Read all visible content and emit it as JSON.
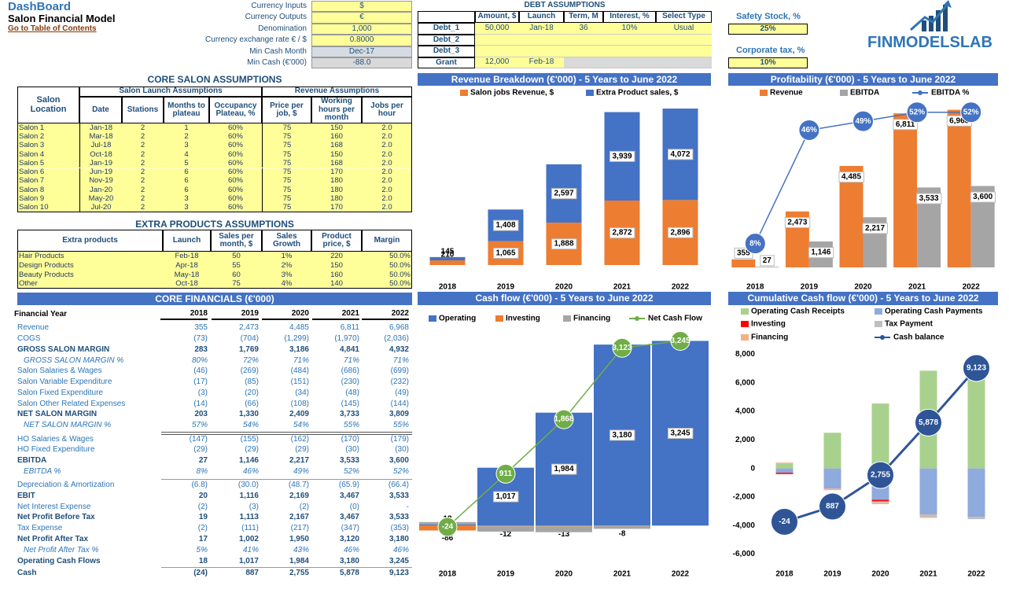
{
  "header": {
    "title": "DashBoard",
    "subtitle": "Salon Financial Model",
    "link": "Go to Table of Contents"
  },
  "inputs": [
    {
      "label": "Currency Inputs",
      "value": "$"
    },
    {
      "label": "Currency Outputs",
      "value": "€"
    },
    {
      "label": "Denomination",
      "value": "1,000"
    },
    {
      "label": "Currency exchange rate € / $",
      "value": "0.8000"
    },
    {
      "label": "Min Cash Month",
      "value": "Dec-17"
    },
    {
      "label": "Min Cash (€'000)",
      "value": "-88.0"
    }
  ],
  "debt": {
    "title": "DEBT ASSUMPTIONS",
    "columns": [
      "Amount, $",
      "Launch",
      "Term, M",
      "Interest, %",
      "Select Type"
    ],
    "rows": [
      {
        "label": "Debt_1",
        "cells": [
          "50,000",
          "Jan-18",
          "36",
          "10%",
          "Usual"
        ]
      },
      {
        "label": "Debt_2",
        "cells": [
          null,
          null,
          null,
          null,
          null
        ]
      },
      {
        "label": "Debt_3",
        "cells": [
          null,
          null,
          null,
          null,
          null
        ]
      },
      {
        "label": "Grant",
        "cells": [
          "12,000",
          "Feb-18",
          null,
          null,
          null
        ]
      }
    ]
  },
  "safety_stock": {
    "label": "Safety Stock, %",
    "value": "25%"
  },
  "corporate_tax": {
    "label": "Corporate tax, %",
    "value": "10%"
  },
  "logo": "FINMODELSLAB",
  "salon": {
    "title": "CORE SALON ASSUMPTIONS",
    "groups": [
      "Salon Launch Assumptions",
      "Revenue Assumptions"
    ],
    "columns": [
      "Salon Location",
      "Date",
      "Stations",
      "Months to plateau",
      "Occupancy Plateau, %",
      "Price per job, $",
      "Working hours per month",
      "Jobs per hour"
    ],
    "rows": [
      [
        "Salon 1",
        "Jan-18",
        "2",
        "1",
        "60%",
        "75",
        "150",
        "2.0"
      ],
      [
        "Salon 2",
        "Mar-18",
        "2",
        "2",
        "60%",
        "75",
        "160",
        "2.0"
      ],
      [
        "Salon 3",
        "Jul-18",
        "2",
        "3",
        "60%",
        "75",
        "168",
        "2.0"
      ],
      [
        "Salon 4",
        "Oct-18",
        "2",
        "4",
        "60%",
        "75",
        "150",
        "2.0"
      ],
      [
        "Salon 5",
        "Jan-19",
        "2",
        "5",
        "60%",
        "75",
        "168",
        "2.0"
      ],
      [
        "Salon 6",
        "Jun-19",
        "2",
        "6",
        "60%",
        "75",
        "170",
        "2.0"
      ],
      [
        "Salon 7",
        "Nov-19",
        "2",
        "6",
        "60%",
        "75",
        "180",
        "2.0"
      ],
      [
        "Salon 8",
        "Jan-20",
        "2",
        "6",
        "60%",
        "75",
        "180",
        "2.0"
      ],
      [
        "Salon 9",
        "May-20",
        "2",
        "3",
        "60%",
        "75",
        "180",
        "2.0"
      ],
      [
        "Salon 10",
        "Jul-20",
        "2",
        "3",
        "60%",
        "75",
        "170",
        "2.0"
      ]
    ]
  },
  "products": {
    "title": "EXTRA PRODUCTS ASSUMPTIONS",
    "columns": [
      "Extra products",
      "Launch",
      "Sales per month, $",
      "Sales Growth",
      "Product price, $",
      "Margin"
    ],
    "rows": [
      [
        "Hair Products",
        "Feb-18",
        "50",
        "1%",
        "220",
        "50.0%"
      ],
      [
        "Design Products",
        "Apr-18",
        "55",
        "2%",
        "150",
        "50.0%"
      ],
      [
        "Beauty Products",
        "May-18",
        "60",
        "3%",
        "160",
        "50.0%"
      ],
      [
        "Other",
        "Oct-18",
        "75",
        "4%",
        "140",
        "50.0%"
      ]
    ]
  },
  "financials": {
    "title": "CORE FINANCIALS (€'000)",
    "columns": [
      "Financial Year",
      "2018",
      "2019",
      "2020",
      "2021",
      "2022"
    ],
    "rows": [
      {
        "label": "Revenue",
        "values": [
          "355",
          "2,473",
          "4,485",
          "6,811",
          "6,968"
        ]
      },
      {
        "label": "COGS",
        "values": [
          "(73)",
          "(704)",
          "(1,299)",
          "(1,970)",
          "(2,036)"
        ]
      },
      {
        "label": "GROSS SALON MARGIN",
        "values": [
          "283",
          "1,769",
          "3,186",
          "4,841",
          "4,932"
        ],
        "style": "bold"
      },
      {
        "label": "GROSS SALON MARGIN %",
        "values": [
          "80%",
          "72%",
          "71%",
          "71%",
          "71%"
        ],
        "style": "italic"
      },
      {
        "label": "Salon Salaries & Wages",
        "values": [
          "(46)",
          "(269)",
          "(484)",
          "(686)",
          "(699)"
        ]
      },
      {
        "label": "Salon Variable Expenditure",
        "values": [
          "(17)",
          "(85)",
          "(151)",
          "(230)",
          "(232)"
        ]
      },
      {
        "label": "Salon Fixed Expenditure",
        "values": [
          "(3)",
          "(20)",
          "(34)",
          "(48)",
          "(49)"
        ]
      },
      {
        "label": "Salon Other Related Expenses",
        "values": [
          "(14)",
          "(66)",
          "(108)",
          "(145)",
          "(144)"
        ]
      },
      {
        "label": "NET SALON MARGIN",
        "values": [
          "203",
          "1,330",
          "2,409",
          "3,733",
          "3,809"
        ],
        "style": "bold"
      },
      {
        "label": "NET SALON MARGIN %",
        "values": [
          "57%",
          "54%",
          "54%",
          "55%",
          "55%"
        ],
        "style": "italic"
      },
      {
        "label": "HO Salaries & Wages",
        "values": [
          "(147)",
          "(155)",
          "(162)",
          "(170)",
          "(179)"
        ]
      },
      {
        "label": "HO Fixed Expenditure",
        "values": [
          "(29)",
          "(29)",
          "(29)",
          "(30)",
          "(30)"
        ]
      },
      {
        "label": "EBITDA",
        "values": [
          "27",
          "1,146",
          "2,217",
          "3,533",
          "3,600"
        ],
        "style": "bold"
      },
      {
        "label": "EBITDA %",
        "values": [
          "8%",
          "46%",
          "49%",
          "52%",
          "52%"
        ],
        "style": "italic"
      },
      {
        "label": "Depreciation & Amortization",
        "values": [
          "(6.8)",
          "(30.0)",
          "(48.7)",
          "(65.9)",
          "(66.4)"
        ]
      },
      {
        "label": "EBIT",
        "values": [
          "20",
          "1,116",
          "2,169",
          "3,467",
          "3,533"
        ],
        "style": "bold"
      },
      {
        "label": "Net Interest Expense",
        "values": [
          "(2)",
          "(3)",
          "(2)",
          "(0)",
          "-"
        ]
      },
      {
        "label": "Net Profit Before Tax",
        "values": [
          "19",
          "1,113",
          "2,167",
          "3,467",
          "3,533"
        ],
        "style": "bold"
      },
      {
        "label": "Tax Expense",
        "values": [
          "(2)",
          "(111)",
          "(217)",
          "(347)",
          "(353)"
        ]
      },
      {
        "label": "Net Profit After Tax",
        "values": [
          "17",
          "1,002",
          "1,950",
          "3,120",
          "3,180"
        ],
        "style": "bold"
      },
      {
        "label": "Net Profit After Tax %",
        "values": [
          "5%",
          "41%",
          "43%",
          "46%",
          "46%"
        ],
        "style": "italic"
      },
      {
        "label": "Operating Cash Flows",
        "values": [
          "18",
          "1,017",
          "1,984",
          "3,180",
          "3,245"
        ],
        "style": "bold"
      },
      {
        "label": "Cash",
        "values": [
          "(24)",
          "887",
          "2,755",
          "5,878",
          "9,123"
        ],
        "style": "bold"
      }
    ]
  },
  "chart_data": [
    {
      "type": "stacked_bar",
      "title": "Revenue Breakdown (€'000) - 5 Years to June 2022",
      "categories": [
        "2018",
        "2019",
        "2020",
        "2021",
        "2022"
      ],
      "legend": "top",
      "series": [
        {
          "name": "Salon jobs Revenue, $",
          "color": "#ED7D31",
          "values": [
            210,
            1065,
            1888,
            2872,
            2896
          ],
          "value_labels": [
            "210",
            "1,065",
            "1,888",
            "2,872",
            "2,896"
          ],
          "labels": true
        },
        {
          "name": "Extra Product sales, $",
          "color": "#4472C4",
          "values": [
            145,
            1408,
            2597,
            3939,
            4072
          ],
          "value_labels": [
            "145",
            "1,408",
            "2,597",
            "3,939",
            "4,072"
          ],
          "labels": true
        }
      ],
      "ylim": [
        0,
        7600
      ]
    },
    {
      "type": "bar",
      "title": "Profitability (€'000) - 5 Years to June 2022",
      "categories": [
        "2018",
        "2019",
        "2020",
        "2021",
        "2022"
      ],
      "legend": "top",
      "series": [
        {
          "name": "Revenue",
          "color": "#ED7D31",
          "values": [
            355,
            2473,
            4485,
            6811,
            6968
          ],
          "value_labels": [
            "355",
            "2,473",
            "4,485",
            "6,811",
            "6,968"
          ],
          "labels": true
        },
        {
          "name": "EBITDA",
          "color": "#A5A5A5",
          "values": [
            27,
            1146,
            2217,
            3533,
            3600
          ],
          "value_labels": [
            "27",
            "1,146",
            "2,217",
            "3,533",
            "3,600"
          ],
          "labels": true
        },
        {
          "name": "EBITDA %",
          "color": "#4472C4",
          "type": "line",
          "axis": "y2",
          "values": [
            8,
            46,
            49,
            52,
            52
          ],
          "value_labels": [
            "8%",
            "46%",
            "49%",
            "52%",
            "52%"
          ],
          "labels": true
        }
      ],
      "ylim": [
        0,
        7650
      ],
      "y2lim": [
        0,
        58
      ]
    },
    {
      "type": "stacked_bar",
      "title": "Cash flow (€'000) - 5 Years to June 2022",
      "categories": [
        "2018",
        "2019",
        "2020",
        "2021",
        "2022"
      ],
      "legend": "top",
      "series": [
        {
          "name": "Operating",
          "color": "#4472C4",
          "values": [
            18,
            1017,
            1984,
            3180,
            3245
          ],
          "value_labels": [
            "18",
            "1,017",
            "1,984",
            "3,180",
            "3,245"
          ],
          "labels": true
        },
        {
          "name": "Investing",
          "color": "#ED7D31",
          "values": [
            -86,
            -12,
            -13,
            -8,
            0
          ],
          "labels": true
        },
        {
          "name": "Financing",
          "color": "#A5A5A5",
          "values": [
            44,
            -94,
            -103,
            -49,
            0
          ],
          "labels": false
        },
        {
          "name": "Net Cash Flow",
          "color": "#70AD47",
          "type": "line",
          "values": [
            -24,
            911,
            1868,
            3123,
            3245
          ],
          "value_labels": [
            "-24",
            "911",
            "1,868",
            "3,123",
            "3,245"
          ],
          "labels": true
        }
      ],
      "ylim": [
        -300,
        3500
      ]
    },
    {
      "type": "stacked_bar",
      "title": "Cumulative Cash flow (€'000) - 5 Years to June 2022",
      "categories": [
        "2018",
        "2019",
        "2020",
        "2021",
        "2022"
      ],
      "legend": "top",
      "grid": false,
      "series": [
        {
          "name": "Operating Cash Receipts",
          "color": "#A9D18E",
          "values": [
            350,
            2500,
            4550,
            6850,
            7100
          ],
          "labels": false
        },
        {
          "name": "Operating Cash Payments",
          "color": "#8FAADC",
          "values": [
            -300,
            -1400,
            -2200,
            -3200,
            -3400
          ],
          "labels": false
        },
        {
          "name": "Investing",
          "color": "#FF0000",
          "values": [
            -90,
            -10,
            -100,
            -10,
            0
          ],
          "labels": false
        },
        {
          "name": "Tax Payment",
          "color": "#BFBFBF",
          "values": [
            0,
            -20,
            -100,
            -200,
            -150
          ],
          "labels": false
        },
        {
          "name": "Financing",
          "color": "#F4B183",
          "values": [
            60,
            -90,
            -100,
            -50,
            0
          ],
          "labels": false
        },
        {
          "name": "Cash balance",
          "color": "#2F5597",
          "type": "line",
          "axis": "y2",
          "values": [
            -24,
            887,
            2755,
            5878,
            9123
          ],
          "value_labels": [
            "-24",
            "887",
            "2,755",
            "5,878",
            "9,123"
          ],
          "labels": true
        }
      ],
      "ylim": [
        -6300,
        8300
      ],
      "y2lim": [
        -2200,
        10200
      ],
      "yticks": [
        {
          "value": -6000,
          "label": "-6,000"
        },
        {
          "value": -4000,
          "label": "-4,000"
        },
        {
          "value": -2000,
          "label": "-2,000"
        },
        0,
        {
          "value": 2000,
          "label": "2,000"
        },
        {
          "value": 4000,
          "label": "4,000"
        },
        {
          "value": 6000,
          "label": "6,000"
        },
        {
          "value": 8000,
          "label": "8,000"
        }
      ]
    }
  ]
}
